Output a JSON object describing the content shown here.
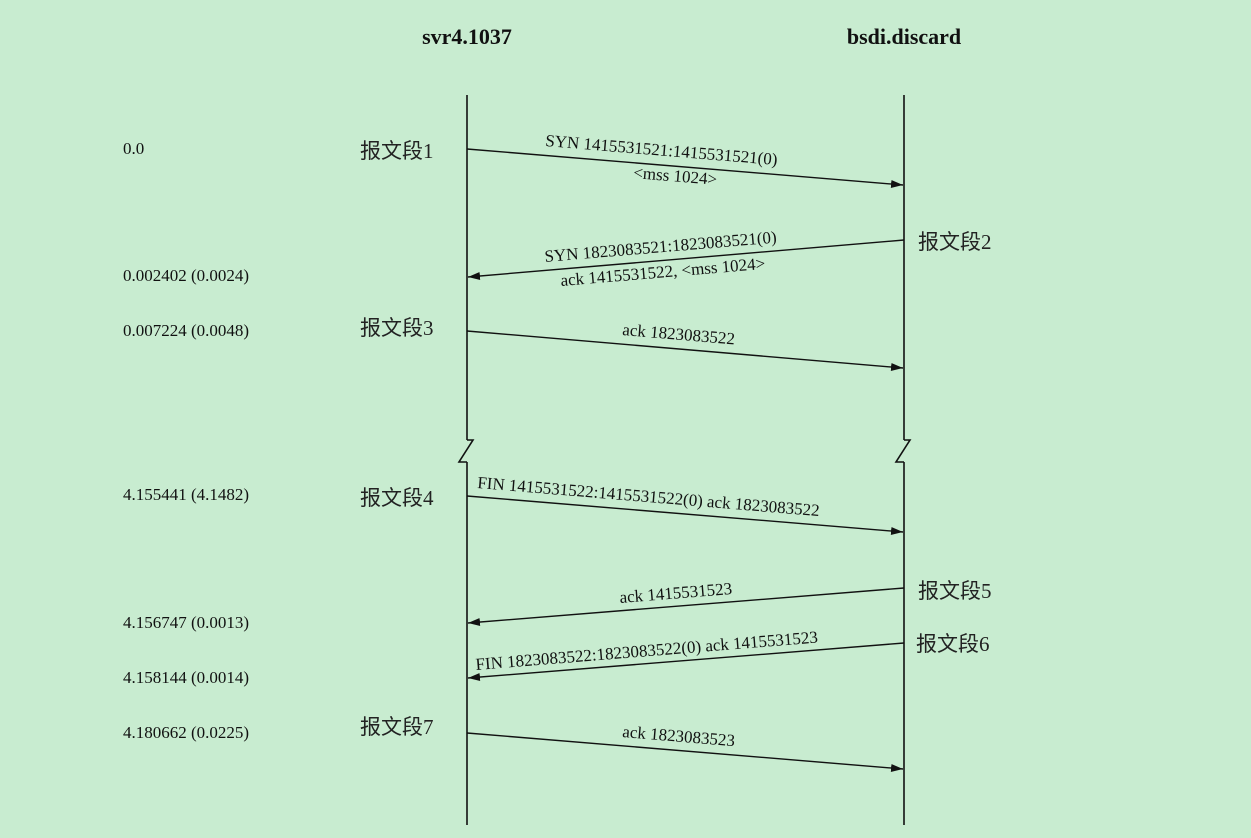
{
  "hosts": {
    "left": "svr4.1037",
    "right": "bsdi.discard"
  },
  "times": {
    "t1": "0.0",
    "t2": "0.002402 (0.0024)",
    "t3": "0.007224 (0.0048)",
    "t4": "4.155441 (4.1482)",
    "t5": "4.156747 (0.0013)",
    "t6": "4.158144 (0.0014)",
    "t7": "4.180662 (0.0225)"
  },
  "segments": {
    "s1": "报文段1",
    "s2": "报文段2",
    "s3": "报文段3",
    "s4": "报文段4",
    "s5": "报文段5",
    "s6": "报文段6",
    "s7": "报文段7"
  },
  "messages": {
    "m1a": "SYN 1415531521:1415531521(0)",
    "m1b": "<mss 1024>",
    "m2a": "SYN 1823083521:1823083521(0)",
    "m2b": "ack 1415531522, <mss 1024>",
    "m3": "ack 1823083522",
    "m4": "FIN 1415531522:1415531522(0) ack 1823083522",
    "m5": "ack 1415531523",
    "m6": "FIN 1823083522:1823083522(0) ack 1415531523",
    "m7": "ack 1823083523"
  }
}
